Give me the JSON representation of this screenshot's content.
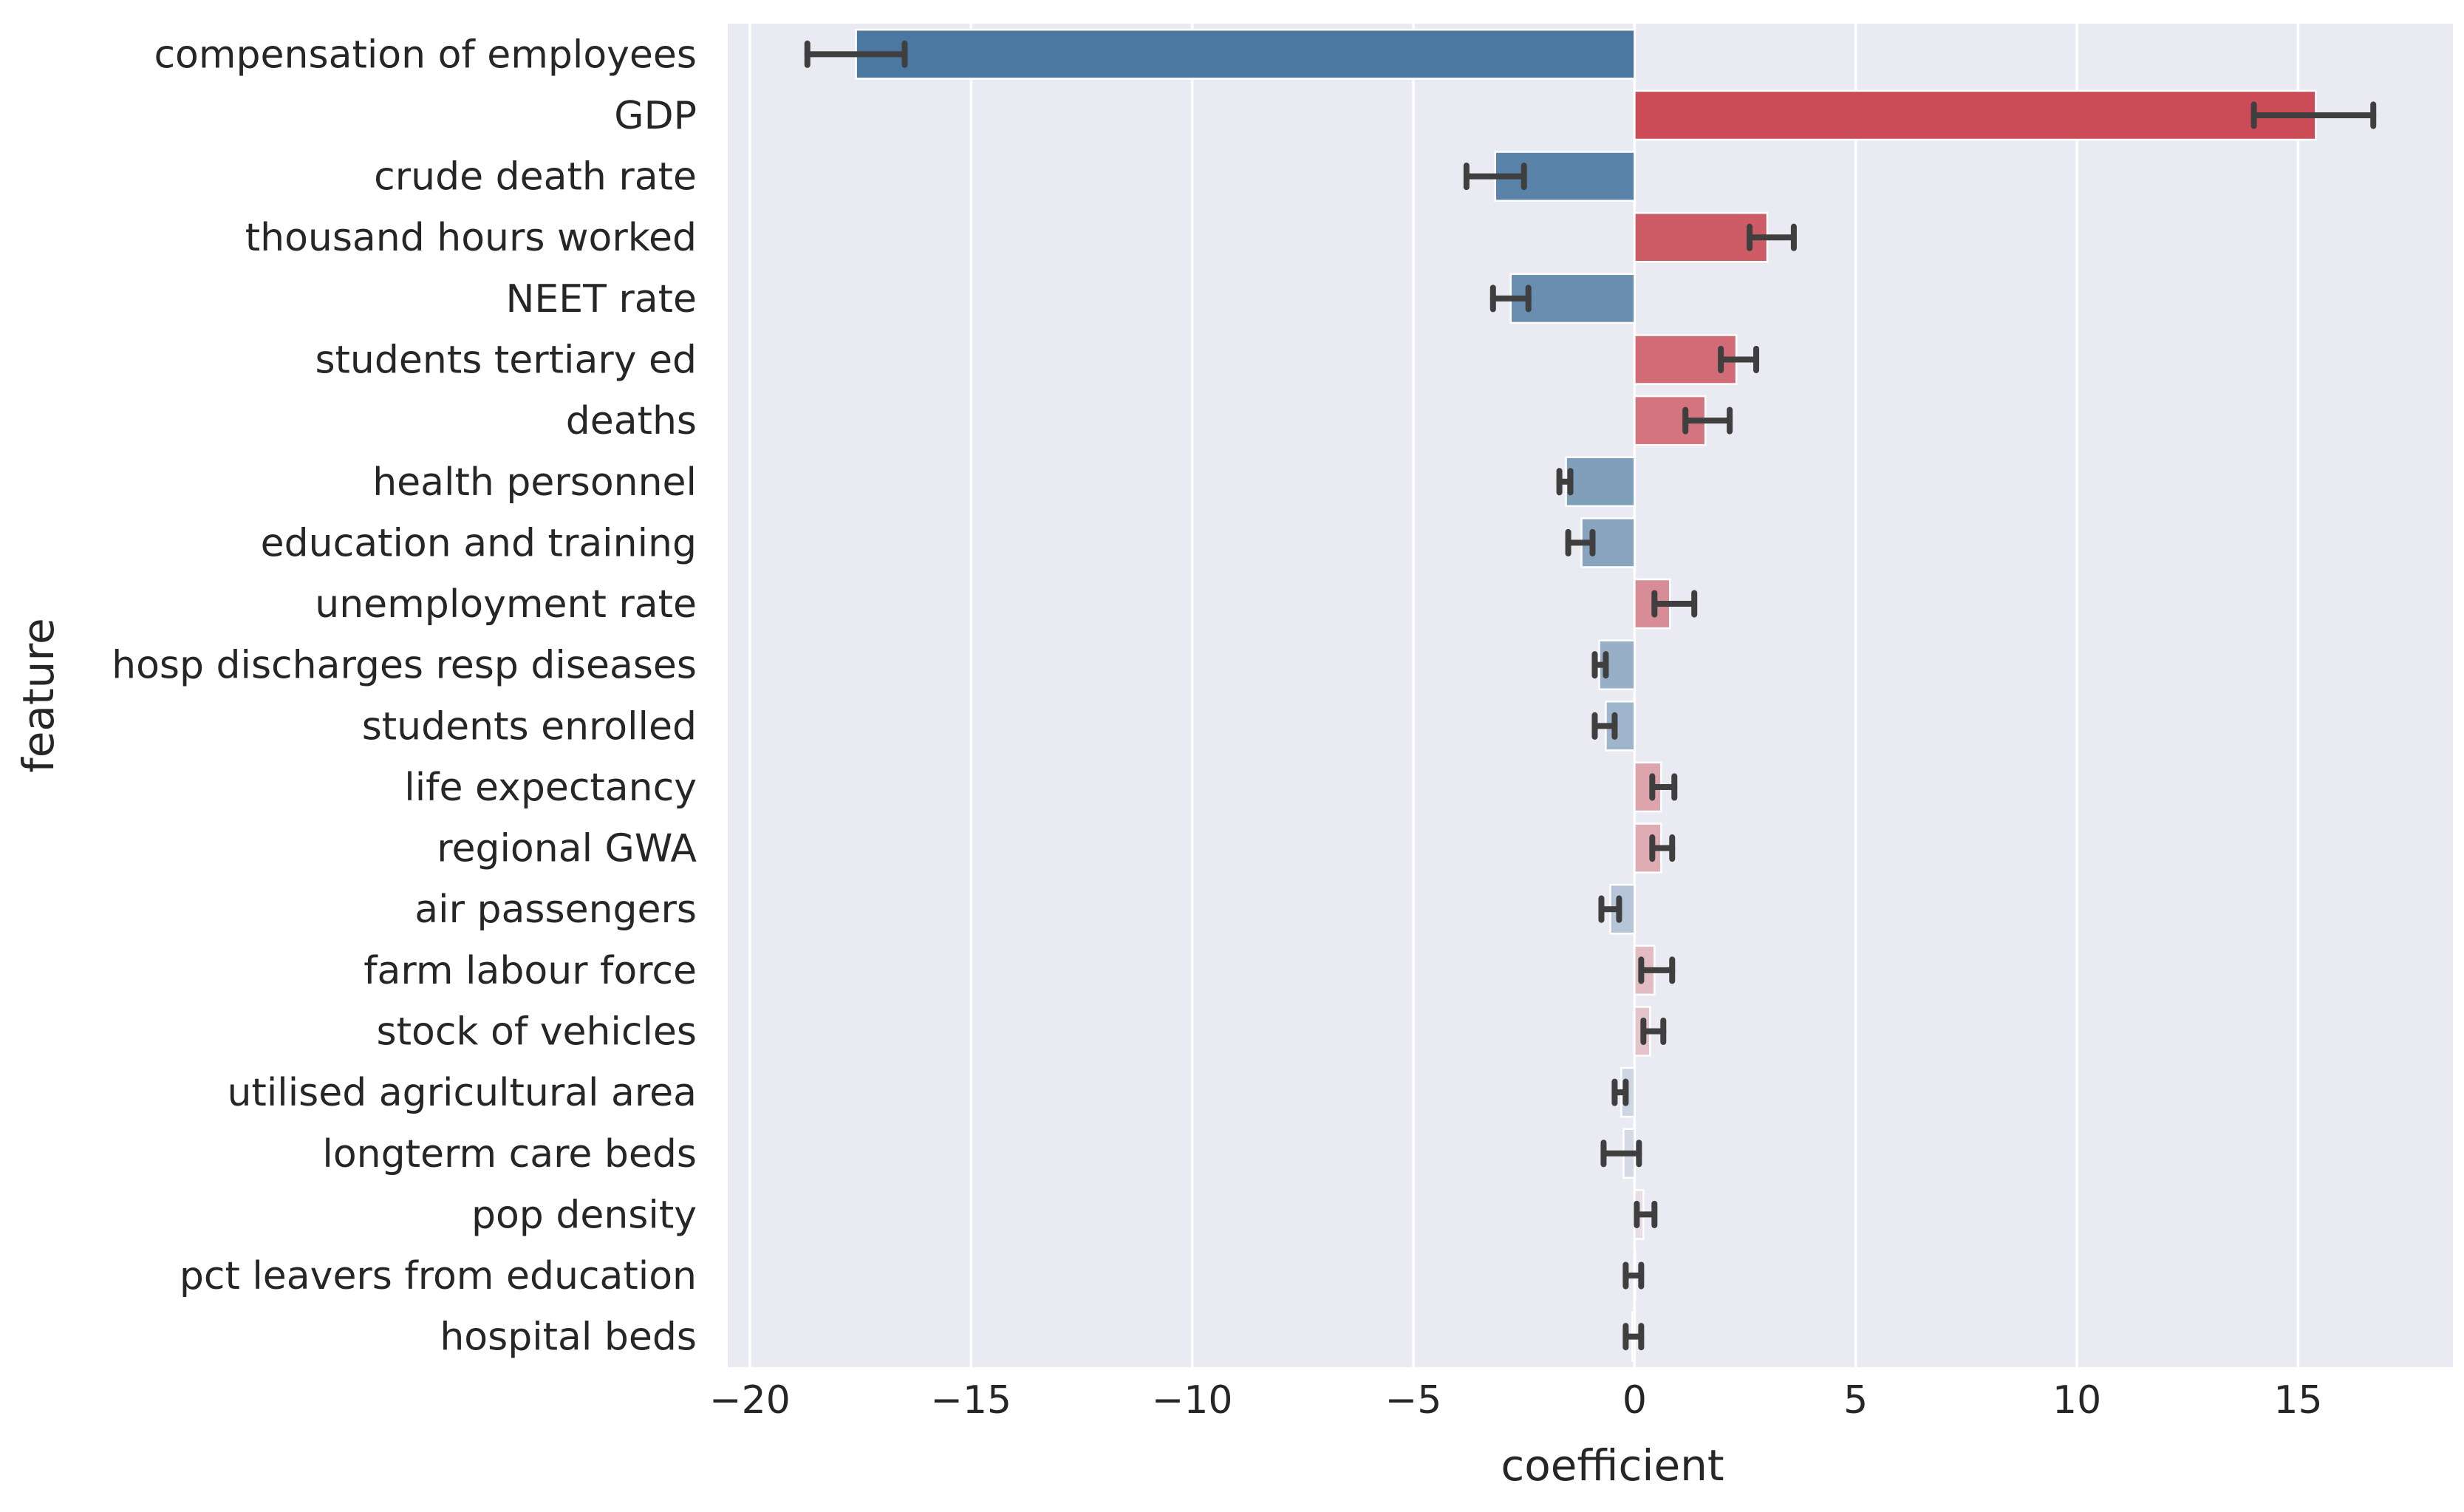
{
  "chart_data": {
    "type": "bar",
    "orientation": "horizontal",
    "xlabel": "coefficient",
    "ylabel": "feature",
    "xlim": [
      -20.5,
      18.5
    ],
    "xticks": [
      -20,
      -15,
      -10,
      -5,
      0,
      5,
      10,
      15
    ],
    "xtick_labels": [
      "−20",
      "−15",
      "−10",
      "−5",
      "0",
      "5",
      "10",
      "15"
    ],
    "grid": true,
    "legend": "none",
    "colors": {
      "background": "#eaeaf2",
      "grid": "#ffffff",
      "negative": "#4a78a0",
      "positive": "#c9444f",
      "errorbar": "#3f3f3f"
    },
    "categories": [
      "compensation of employees",
      "GDP",
      "crude death rate",
      "thousand hours worked",
      "NEET rate",
      "students tertiary ed",
      "deaths",
      "health personnel",
      "education and training",
      "unemployment rate",
      "hosp discharges resp diseases",
      "students enrolled",
      "life expectancy",
      "regional GWA",
      "air passengers",
      "farm labour force",
      "stock of vehicles",
      "utilised agricultural area",
      "longterm care beds",
      "pop density",
      "pct leavers from education",
      "hospital beds"
    ],
    "values": [
      -17.6,
      15.4,
      -3.15,
      3.0,
      -2.8,
      2.3,
      1.6,
      -1.55,
      -1.2,
      0.8,
      -0.8,
      -0.65,
      0.6,
      0.6,
      -0.55,
      0.45,
      0.35,
      -0.3,
      -0.25,
      0.2,
      0.0,
      -0.05
    ],
    "error_low": [
      -18.7,
      14.0,
      -3.8,
      2.6,
      -3.2,
      1.95,
      1.15,
      -1.7,
      -1.5,
      0.45,
      -0.9,
      -0.9,
      0.4,
      0.4,
      -0.75,
      0.15,
      0.2,
      -0.45,
      -0.7,
      0.05,
      -0.2,
      -0.2
    ],
    "error_high": [
      -16.5,
      16.7,
      -2.5,
      3.6,
      -2.4,
      2.75,
      2.15,
      -1.45,
      -0.95,
      1.35,
      -0.65,
      -0.45,
      0.9,
      0.85,
      -0.35,
      0.85,
      0.65,
      -0.2,
      0.1,
      0.45,
      0.15,
      0.15
    ]
  }
}
